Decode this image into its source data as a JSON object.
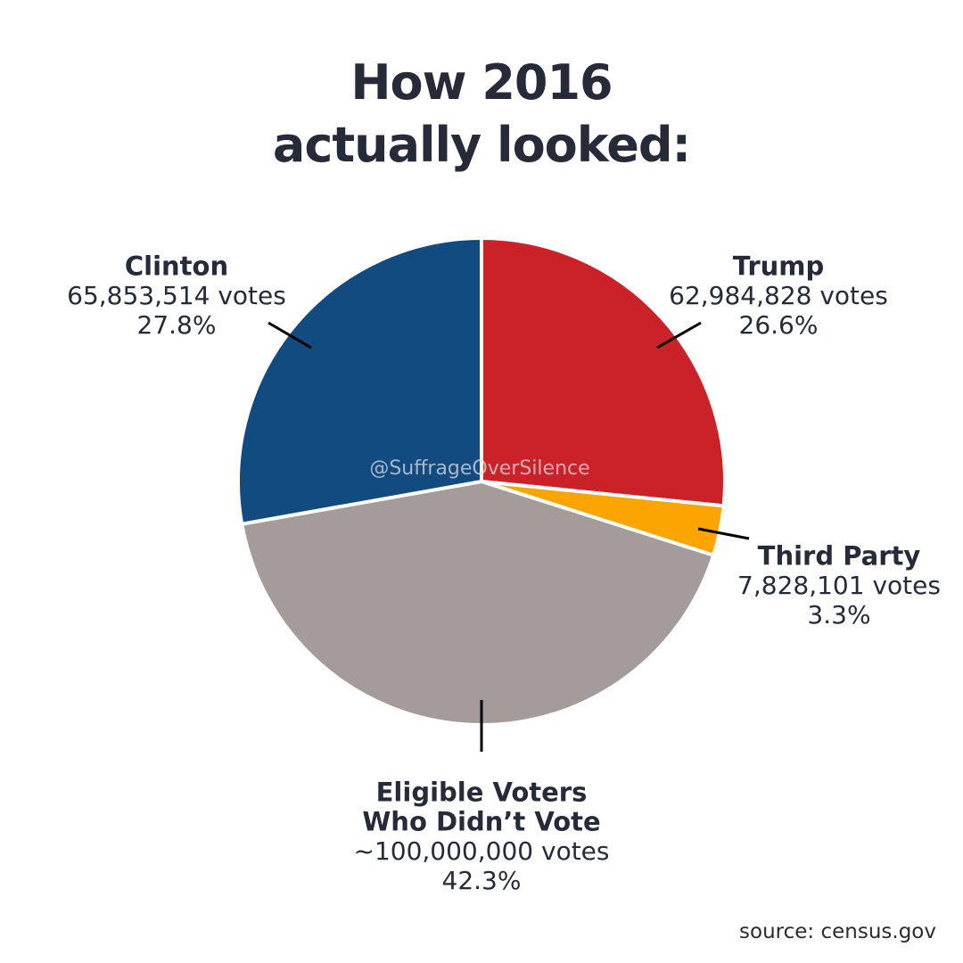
{
  "title": {
    "line1": "How 2016",
    "line2": "actually looked:"
  },
  "watermark": "@SuffrageOverSilence",
  "source": "source: census.gov",
  "chart_data": {
    "type": "pie",
    "slices": [
      {
        "name_lines": [
          "Trump"
        ],
        "votes_text": "62,984,828 votes",
        "percent_text": "26.6%",
        "value": 26.6,
        "votes": 62984828,
        "color": "#cb2129"
      },
      {
        "name_lines": [
          "Third Party"
        ],
        "votes_text": "7,828,101 votes",
        "percent_text": "3.3%",
        "value": 3.3,
        "votes": 7828101,
        "color": "#fca500"
      },
      {
        "name_lines": [
          "Eligible Voters",
          "Who Didn’t Vote"
        ],
        "votes_text": "~100,000,000 votes",
        "percent_text": "42.3%",
        "value": 42.3,
        "votes": 100000000,
        "color": "#a39c9a"
      },
      {
        "name_lines": [
          "Clinton"
        ],
        "votes_text": "65,853,514 votes",
        "percent_text": "27.8%",
        "value": 27.8,
        "votes": 65853514,
        "color": "#124b80"
      }
    ]
  }
}
